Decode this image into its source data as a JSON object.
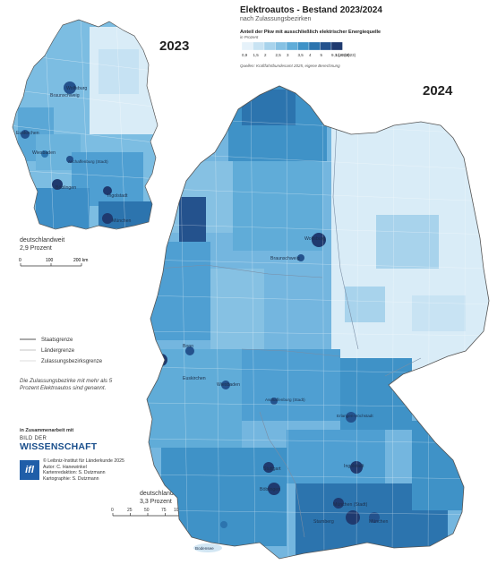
{
  "title": "Elektroautos - Bestand 2023/2024",
  "subtitle": "nach Zulassungsbezirken",
  "legend": {
    "title": "Anteil der Pkw mit ausschließlich elektrischer Energiequelle",
    "unit": "in Prozent",
    "ticks": [
      "0,9",
      "1,5",
      "2",
      "2,5",
      "3",
      "3,5",
      "4",
      "5",
      "9,1 (2024)",
      "11,4 (2023)"
    ],
    "colors": [
      "#e6f2fa",
      "#c8e3f3",
      "#a8d3ec",
      "#86c1e3",
      "#60acd8",
      "#3f92c7",
      "#2c74ae",
      "#24528d",
      "#1f3a6f"
    ]
  },
  "source": "Quellen: Kraftfahrtbundesamt 2025, eigene Berechnung",
  "years": {
    "left": "2023",
    "right": "2024"
  },
  "national": {
    "y2023": {
      "label": "deutschlandweit",
      "value": "2,9 Prozent"
    },
    "y2024": {
      "label": "deutschlandweit",
      "value": "3,3 Prozent"
    }
  },
  "scalebar_2023": [
    "0",
    "100",
    "200 km"
  ],
  "scalebar_2024": [
    "0",
    "25",
    "50",
    "75",
    "100 km"
  ],
  "border_legend": [
    "Staatsgrenze",
    "Ländergrenze",
    "Zulassungsbezirksgrenze"
  ],
  "note": "Die Zulassungsbezirke mit mehr als 5 Prozent Elektroautos sind genannt.",
  "collab": {
    "heading": "in Zusammenarbeit mit",
    "bdw_top": "BILD DER",
    "bdw_main": "WISSENSCHAFT"
  },
  "credits": {
    "logo": "ifl",
    "lines": [
      "© Leibniz-Institut für Länderkunde 2025",
      "Autor: C. Hanewinkel",
      "Kartenredaktion: S. Dutzmann",
      "Kartographie: S. Dutzmann"
    ]
  },
  "cities_2023": [
    "Wolfsburg",
    "Braunschweig",
    "Euskirchen",
    "Wiesbaden",
    "Aschaffenburg (Stadt)",
    "Böblingen",
    "Ingolstadt",
    "München"
  ],
  "cities_2024": [
    "Wolfsburg",
    "Braunschweig",
    "Bonn",
    "Euskirchen",
    "Wiesbaden",
    "Aschaffenburg (Stadt)",
    "Erlangen-Höchstadt",
    "Stuttgart",
    "Böblingen",
    "Ingolstadt",
    "München (Stadt)",
    "Starnberg",
    "München"
  ],
  "lake": "Bodensee"
}
